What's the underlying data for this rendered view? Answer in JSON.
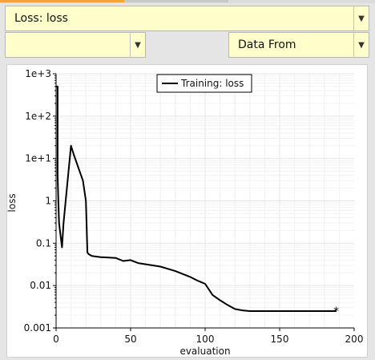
{
  "loss_select": {
    "value": "Loss: loss"
  },
  "secondary_select": {
    "value": ""
  },
  "source_select": {
    "value": "Data From"
  },
  "chart_data": {
    "type": "line",
    "xlabel": "evaluation",
    "ylabel": "loss",
    "xlim": [
      0,
      200
    ],
    "ylim": [
      0.001,
      1000
    ],
    "yscale": "log",
    "grid": true,
    "legend": "top-center",
    "x_ticks": [
      "0",
      "50",
      "100",
      "150",
      "200"
    ],
    "y_ticks": [
      "0.001",
      "0.01",
      "0.1",
      "1",
      "1e+1",
      "1e+2",
      "1e+3"
    ],
    "series": [
      {
        "name": "Training: loss",
        "color": "#000000",
        "end_marker": "asterisk",
        "x": [
          0,
          1,
          1,
          1.5,
          2,
          3,
          4,
          5,
          10,
          12,
          18,
          20,
          21,
          22,
          24,
          30,
          40,
          45,
          50,
          55,
          70,
          80,
          90,
          95,
          100,
          105,
          110,
          115,
          120,
          125,
          130,
          140,
          150,
          160,
          170,
          180,
          188
        ],
        "y": [
          500,
          500,
          4,
          1,
          0.3,
          0.15,
          0.08,
          0.3,
          20,
          12,
          3,
          1,
          0.06,
          0.055,
          0.05,
          0.047,
          0.045,
          0.038,
          0.04,
          0.034,
          0.028,
          0.022,
          0.016,
          0.013,
          0.011,
          0.006,
          0.0045,
          0.0035,
          0.0028,
          0.0026,
          0.0025,
          0.0025,
          0.0025,
          0.0025,
          0.0025,
          0.0025,
          0.0025
        ]
      }
    ]
  }
}
